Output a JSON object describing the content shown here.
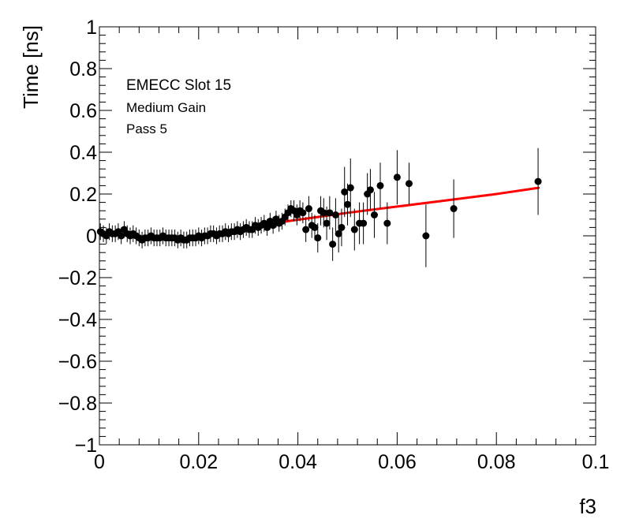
{
  "chart_data": {
    "type": "scatter",
    "xlabel": "f3",
    "ylabel": "Time [ns]",
    "xlim": [
      0,
      0.1
    ],
    "ylim": [
      -1,
      1
    ],
    "x_ticks": [
      0,
      0.02,
      0.04,
      0.06,
      0.08,
      0.1
    ],
    "x_tick_labels": [
      "0",
      "0.02",
      "0.04",
      "0.06",
      "0.08",
      "0.1"
    ],
    "y_ticks": [
      -1,
      -0.8,
      -0.6,
      -0.4,
      -0.2,
      0,
      0.2,
      0.4,
      0.6,
      0.8,
      1
    ],
    "y_tick_labels": [
      "−1",
      "−0.8",
      "−0.6",
      "−0.4",
      "−0.2",
      "0",
      "0.2",
      "0.4",
      "0.6",
      "0.8",
      "1"
    ],
    "annotations": [
      "EMECC Slot 15",
      "Medium Gain",
      "Pass 5"
    ],
    "grid": false,
    "series": [
      {
        "type": "points-with-errors",
        "color": "#000000",
        "points": [
          {
            "x": 0.0002,
            "y": 0.02,
            "err": 0.04
          },
          {
            "x": 0.0008,
            "y": 0.01,
            "err": 0.04
          },
          {
            "x": 0.0014,
            "y": 0.0,
            "err": 0.04
          },
          {
            "x": 0.002,
            "y": 0.02,
            "err": 0.04
          },
          {
            "x": 0.0026,
            "y": 0.01,
            "err": 0.04
          },
          {
            "x": 0.0032,
            "y": 0.01,
            "err": 0.04
          },
          {
            "x": 0.0038,
            "y": 0.02,
            "err": 0.04
          },
          {
            "x": 0.0044,
            "y": 0.0,
            "err": 0.04
          },
          {
            "x": 0.005,
            "y": 0.03,
            "err": 0.04
          },
          {
            "x": 0.0056,
            "y": 0.01,
            "err": 0.04
          },
          {
            "x": 0.0062,
            "y": 0.0,
            "err": 0.04
          },
          {
            "x": 0.0068,
            "y": 0.01,
            "err": 0.04
          },
          {
            "x": 0.0074,
            "y": 0.0,
            "err": 0.04
          },
          {
            "x": 0.008,
            "y": -0.01,
            "err": 0.04
          },
          {
            "x": 0.0086,
            "y": -0.02,
            "err": 0.04
          },
          {
            "x": 0.0092,
            "y": -0.01,
            "err": 0.04
          },
          {
            "x": 0.0098,
            "y": -0.01,
            "err": 0.04
          },
          {
            "x": 0.0104,
            "y": 0.0,
            "err": 0.04
          },
          {
            "x": 0.011,
            "y": -0.01,
            "err": 0.04
          },
          {
            "x": 0.0116,
            "y": -0.01,
            "err": 0.04
          },
          {
            "x": 0.0122,
            "y": -0.01,
            "err": 0.04
          },
          {
            "x": 0.0128,
            "y": 0.0,
            "err": 0.04
          },
          {
            "x": 0.0134,
            "y": -0.01,
            "err": 0.04
          },
          {
            "x": 0.014,
            "y": -0.01,
            "err": 0.04
          },
          {
            "x": 0.0146,
            "y": -0.01,
            "err": 0.04
          },
          {
            "x": 0.0152,
            "y": -0.01,
            "err": 0.04
          },
          {
            "x": 0.0158,
            "y": -0.02,
            "err": 0.04
          },
          {
            "x": 0.0164,
            "y": -0.01,
            "err": 0.04
          },
          {
            "x": 0.017,
            "y": -0.02,
            "err": 0.04
          },
          {
            "x": 0.0176,
            "y": -0.02,
            "err": 0.04
          },
          {
            "x": 0.0182,
            "y": -0.01,
            "err": 0.04
          },
          {
            "x": 0.0188,
            "y": -0.01,
            "err": 0.04
          },
          {
            "x": 0.0194,
            "y": -0.01,
            "err": 0.04
          },
          {
            "x": 0.02,
            "y": 0.0,
            "err": 0.04
          },
          {
            "x": 0.0206,
            "y": -0.01,
            "err": 0.04
          },
          {
            "x": 0.0212,
            "y": 0.0,
            "err": 0.04
          },
          {
            "x": 0.0218,
            "y": 0.0,
            "err": 0.04
          },
          {
            "x": 0.0224,
            "y": 0.01,
            "err": 0.04
          },
          {
            "x": 0.023,
            "y": 0.01,
            "err": 0.04
          },
          {
            "x": 0.0236,
            "y": 0.0,
            "err": 0.04
          },
          {
            "x": 0.0242,
            "y": 0.01,
            "err": 0.04
          },
          {
            "x": 0.0248,
            "y": 0.01,
            "err": 0.04
          },
          {
            "x": 0.0254,
            "y": 0.02,
            "err": 0.04
          },
          {
            "x": 0.026,
            "y": 0.01,
            "err": 0.04
          },
          {
            "x": 0.0266,
            "y": 0.02,
            "err": 0.04
          },
          {
            "x": 0.0272,
            "y": 0.02,
            "err": 0.04
          },
          {
            "x": 0.0278,
            "y": 0.03,
            "err": 0.04
          },
          {
            "x": 0.0284,
            "y": 0.02,
            "err": 0.04
          },
          {
            "x": 0.029,
            "y": 0.03,
            "err": 0.04
          },
          {
            "x": 0.0296,
            "y": 0.04,
            "err": 0.04
          },
          {
            "x": 0.0302,
            "y": 0.03,
            "err": 0.04
          },
          {
            "x": 0.0308,
            "y": 0.03,
            "err": 0.04
          },
          {
            "x": 0.0314,
            "y": 0.05,
            "err": 0.04
          },
          {
            "x": 0.032,
            "y": 0.04,
            "err": 0.04
          },
          {
            "x": 0.0326,
            "y": 0.05,
            "err": 0.04
          },
          {
            "x": 0.0332,
            "y": 0.06,
            "err": 0.04
          },
          {
            "x": 0.0338,
            "y": 0.04,
            "err": 0.04
          },
          {
            "x": 0.0344,
            "y": 0.07,
            "err": 0.04
          },
          {
            "x": 0.035,
            "y": 0.05,
            "err": 0.04
          },
          {
            "x": 0.0356,
            "y": 0.08,
            "err": 0.04
          },
          {
            "x": 0.0362,
            "y": 0.06,
            "err": 0.04
          },
          {
            "x": 0.0368,
            "y": 0.07,
            "err": 0.04
          },
          {
            "x": 0.0374,
            "y": 0.09,
            "err": 0.04
          },
          {
            "x": 0.038,
            "y": 0.11,
            "err": 0.04
          },
          {
            "x": 0.0386,
            "y": 0.13,
            "err": 0.04
          },
          {
            "x": 0.0392,
            "y": 0.12,
            "err": 0.05
          },
          {
            "x": 0.0398,
            "y": 0.1,
            "err": 0.05
          },
          {
            "x": 0.0404,
            "y": 0.12,
            "err": 0.05
          },
          {
            "x": 0.041,
            "y": 0.11,
            "err": 0.05
          },
          {
            "x": 0.0416,
            "y": 0.03,
            "err": 0.06
          },
          {
            "x": 0.0422,
            "y": 0.13,
            "err": 0.06
          },
          {
            "x": 0.0428,
            "y": 0.05,
            "err": 0.06
          },
          {
            "x": 0.0434,
            "y": 0.04,
            "err": 0.06
          },
          {
            "x": 0.044,
            "y": -0.01,
            "err": 0.07
          },
          {
            "x": 0.0446,
            "y": 0.12,
            "err": 0.07
          },
          {
            "x": 0.0452,
            "y": 0.11,
            "err": 0.07
          },
          {
            "x": 0.0458,
            "y": 0.06,
            "err": 0.08
          },
          {
            "x": 0.0464,
            "y": 0.11,
            "err": 0.08
          },
          {
            "x": 0.047,
            "y": -0.04,
            "err": 0.08
          },
          {
            "x": 0.0476,
            "y": 0.1,
            "err": 0.08
          },
          {
            "x": 0.0482,
            "y": 0.01,
            "err": 0.09
          },
          {
            "x": 0.0488,
            "y": 0.04,
            "err": 0.09
          },
          {
            "x": 0.0494,
            "y": 0.21,
            "err": 0.12
          },
          {
            "x": 0.05,
            "y": 0.15,
            "err": 0.1
          },
          {
            "x": 0.0506,
            "y": 0.23,
            "err": 0.14
          },
          {
            "x": 0.0514,
            "y": 0.03,
            "err": 0.1
          },
          {
            "x": 0.0524,
            "y": 0.06,
            "err": 0.1
          },
          {
            "x": 0.0532,
            "y": 0.06,
            "err": 0.1
          },
          {
            "x": 0.054,
            "y": 0.2,
            "err": 0.1
          },
          {
            "x": 0.0546,
            "y": 0.22,
            "err": 0.1
          },
          {
            "x": 0.0554,
            "y": 0.1,
            "err": 0.11
          },
          {
            "x": 0.0566,
            "y": 0.24,
            "err": 0.11
          },
          {
            "x": 0.058,
            "y": 0.06,
            "err": 0.1
          },
          {
            "x": 0.06,
            "y": 0.28,
            "err": 0.13
          },
          {
            "x": 0.0624,
            "y": 0.25,
            "err": 0.1
          },
          {
            "x": 0.0658,
            "y": 0.0,
            "err": 0.15
          },
          {
            "x": 0.0714,
            "y": 0.13,
            "err": 0.14
          },
          {
            "x": 0.0884,
            "y": 0.26,
            "err": 0.16
          }
        ]
      },
      {
        "type": "fit-curve",
        "color": "#ff0000",
        "points": [
          {
            "x": 0.0,
            "y": 0.01
          },
          {
            "x": 0.004,
            "y": 0.005
          },
          {
            "x": 0.008,
            "y": -0.005
          },
          {
            "x": 0.012,
            "y": -0.008
          },
          {
            "x": 0.016,
            "y": -0.01
          },
          {
            "x": 0.018,
            "y": -0.008
          },
          {
            "x": 0.022,
            "y": 0.005
          },
          {
            "x": 0.026,
            "y": 0.02
          },
          {
            "x": 0.03,
            "y": 0.038
          },
          {
            "x": 0.034,
            "y": 0.055
          },
          {
            "x": 0.038,
            "y": 0.07
          },
          {
            "x": 0.044,
            "y": 0.09
          },
          {
            "x": 0.05,
            "y": 0.11
          },
          {
            "x": 0.06,
            "y": 0.14
          },
          {
            "x": 0.07,
            "y": 0.17
          },
          {
            "x": 0.08,
            "y": 0.2
          },
          {
            "x": 0.0885,
            "y": 0.23
          }
        ]
      }
    ]
  }
}
